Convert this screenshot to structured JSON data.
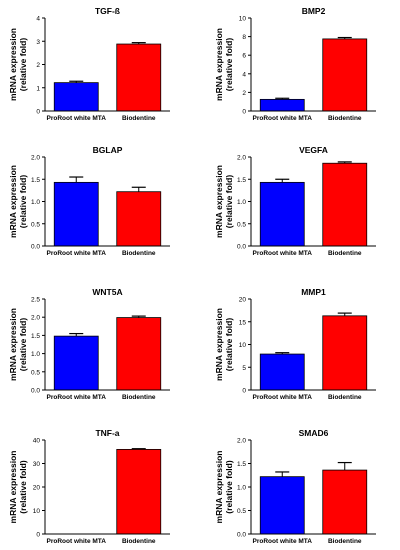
{
  "colors": {
    "series_1": "#0000ff",
    "series_2": "#ff0000",
    "axis": "#000000",
    "error_bar": "#000000"
  },
  "chart_data": [
    {
      "type": "bar",
      "title": "TGF-ß",
      "ylabel": "mRNA expression\n(relative fold)",
      "categories": [
        "ProRoot white MTA",
        "Biodentine"
      ],
      "values": [
        1.22,
        2.88
      ],
      "errors": [
        0.06,
        0.06
      ],
      "ylim": [
        0,
        4
      ],
      "yticks": [
        0,
        1,
        2,
        3,
        4
      ]
    },
    {
      "type": "bar",
      "title": "BMP2",
      "ylabel": "mRNA expression\n(relative fold)",
      "categories": [
        "ProRoot white MTA",
        "Biodentine"
      ],
      "values": [
        1.25,
        7.75
      ],
      "errors": [
        0.12,
        0.15
      ],
      "ylim": [
        0,
        10
      ],
      "yticks": [
        0,
        2,
        4,
        6,
        8,
        10
      ]
    },
    {
      "type": "bar",
      "title": "BGLAP",
      "ylabel": "mRNA expression\n(relative fold)",
      "categories": [
        "ProRoot white MTA",
        "Biodentine"
      ],
      "values": [
        1.43,
        1.22
      ],
      "errors": [
        0.12,
        0.1
      ],
      "ylim": [
        0,
        2.0
      ],
      "yticks": [
        0,
        0.5,
        1.0,
        1.5,
        2.0
      ]
    },
    {
      "type": "bar",
      "title": "VEGFA",
      "ylabel": "mRNA expression\n(relative fold)",
      "categories": [
        "ProRoot white MTA",
        "Biodentine"
      ],
      "values": [
        1.43,
        1.86
      ],
      "errors": [
        0.07,
        0.03
      ],
      "ylim": [
        0,
        2.0
      ],
      "yticks": [
        0,
        0.5,
        1.0,
        1.5,
        2.0
      ]
    },
    {
      "type": "bar",
      "title": "WNT5A",
      "ylabel": "mRNA expression\n(relative fold)",
      "categories": [
        "ProRoot white MTA",
        "Biodentine"
      ],
      "values": [
        1.48,
        1.99
      ],
      "errors": [
        0.07,
        0.04
      ],
      "ylim": [
        0,
        2.5
      ],
      "yticks": [
        0,
        0.5,
        1.0,
        1.5,
        2.0,
        2.5
      ]
    },
    {
      "type": "bar",
      "title": "MMP1",
      "ylabel": "mRNA expression\n(relative fold)",
      "categories": [
        "ProRoot white MTA",
        "Biodentine"
      ],
      "values": [
        7.9,
        16.3
      ],
      "errors": [
        0.3,
        0.6
      ],
      "ylim": [
        0,
        20
      ],
      "yticks": [
        0,
        5,
        10,
        15,
        20
      ]
    },
    {
      "type": "bar",
      "title": "TNF-a",
      "ylabel": "mRNA expression\n(relative fold)",
      "categories": [
        "ProRoot white MTA",
        "Biodentine"
      ],
      "values": [
        0.0,
        36.0
      ],
      "errors": [
        0,
        0.3
      ],
      "ylim": [
        0,
        40
      ],
      "yticks": [
        0,
        10,
        20,
        30,
        40
      ]
    },
    {
      "type": "bar",
      "title": "SMAD6",
      "ylabel": "mRNA expression\n(relative fold)",
      "categories": [
        "ProRoot white MTA",
        "Biodentine"
      ],
      "values": [
        1.22,
        1.36
      ],
      "errors": [
        0.1,
        0.16
      ],
      "ylim": [
        0,
        2.0
      ],
      "yticks": [
        0,
        0.5,
        1.0,
        1.5,
        2.0
      ]
    }
  ]
}
